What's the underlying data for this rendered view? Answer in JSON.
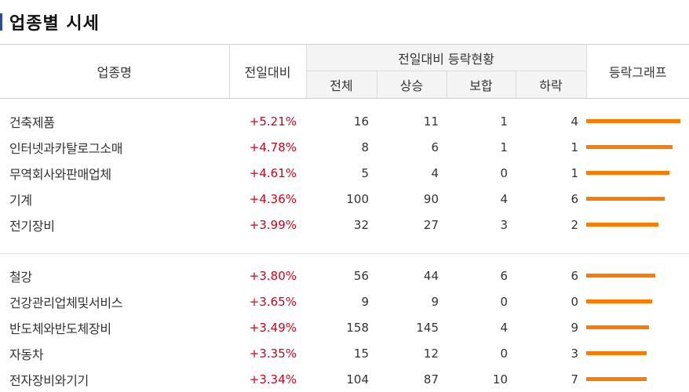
{
  "title": "업종별 시세",
  "colors": {
    "title_mark": "#2a4a9c",
    "rise": "#d0021b",
    "bar": "#ff7b00",
    "header_bg": "#f4f4f4"
  },
  "headers": {
    "sector_name": "업종명",
    "change": "전일대비",
    "status_group": "전일대비 등락현황",
    "total": "전체",
    "up": "상승",
    "flat": "보합",
    "down": "하락",
    "graph": "등락그래프"
  },
  "groups": [
    {
      "rows": [
        {
          "name": "건축제품",
          "rate": "+5.21%",
          "total": "16",
          "up": "11",
          "flat": "1",
          "down": "4",
          "rate_value": 5.21
        },
        {
          "name": "인터넷과카탈로그소매",
          "rate": "+4.78%",
          "total": "8",
          "up": "6",
          "flat": "1",
          "down": "1",
          "rate_value": 4.78
        },
        {
          "name": "무역회사와판매업체",
          "rate": "+4.61%",
          "total": "5",
          "up": "4",
          "flat": "0",
          "down": "1",
          "rate_value": 4.61
        },
        {
          "name": "기계",
          "rate": "+4.36%",
          "total": "100",
          "up": "90",
          "flat": "4",
          "down": "6",
          "rate_value": 4.36
        },
        {
          "name": "전기장비",
          "rate": "+3.99%",
          "total": "32",
          "up": "27",
          "flat": "3",
          "down": "2",
          "rate_value": 3.99
        }
      ]
    },
    {
      "rows": [
        {
          "name": "철강",
          "rate": "+3.80%",
          "total": "56",
          "up": "44",
          "flat": "6",
          "down": "6",
          "rate_value": 3.8
        },
        {
          "name": "건강관리업체및서비스",
          "rate": "+3.65%",
          "total": "9",
          "up": "9",
          "flat": "0",
          "down": "0",
          "rate_value": 3.65
        },
        {
          "name": "반도체와반도체장비",
          "rate": "+3.49%",
          "total": "158",
          "up": "145",
          "flat": "4",
          "down": "9",
          "rate_value": 3.49
        },
        {
          "name": "자동차",
          "rate": "+3.35%",
          "total": "15",
          "up": "12",
          "flat": "0",
          "down": "3",
          "rate_value": 3.35
        },
        {
          "name": "전자장비와기기",
          "rate": "+3.34%",
          "total": "104",
          "up": "87",
          "flat": "10",
          "down": "7",
          "rate_value": 3.34
        }
      ]
    }
  ]
}
